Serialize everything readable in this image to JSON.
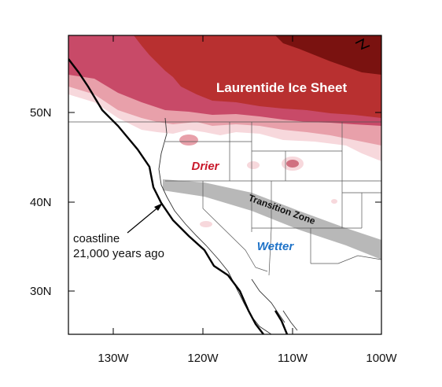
{
  "labels": {
    "ice_sheet": "Laurentide Ice Sheet",
    "drier": "Drier",
    "wetter": "Wetter",
    "transition": "Transition Zone",
    "coastline_line1": "coastline",
    "coastline_line2": "21,000 years ago"
  },
  "axes": {
    "lat_ticks": [
      "30N",
      "40N",
      "50N"
    ],
    "lon_ticks": [
      "130W",
      "120W",
      "110W",
      "100W"
    ]
  },
  "colors": {
    "drier_text": "#c8182a",
    "wetter_text": "#1f73c8",
    "ice_text": "#ffffff",
    "transition_band": "#b8b8b8",
    "ice_dark": "#7a1210",
    "ice_red": "#b83030",
    "ice_mid": "#c84a68",
    "ice_light": "#e8a0aa",
    "ice_pale": "#f7d8dc"
  }
}
